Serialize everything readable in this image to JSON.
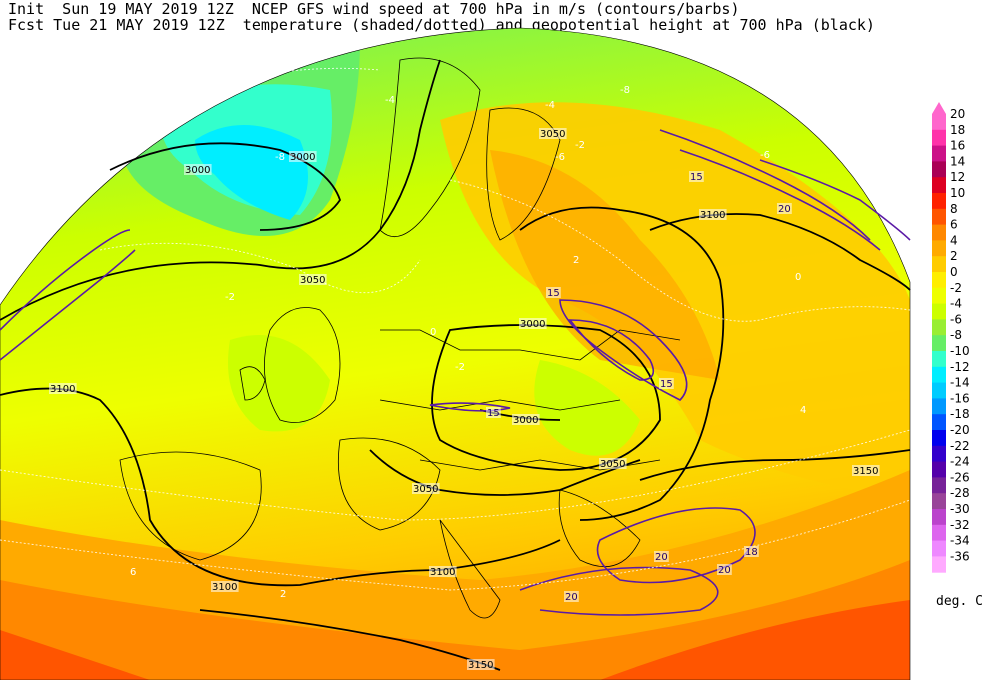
{
  "header": {
    "line1": "Init  Sun 19 MAY 2019 12Z  NCEP GFS wind speed at 700 hPa in m/s (contours/barbs)",
    "line2": "Fcst Tue 21 MAY 2019 12Z  temperature (shaded/dotted) and geopotential height at 700 hPa (black)"
  },
  "colorbar": {
    "unit": "deg. C",
    "levels": [
      {
        "label": "20",
        "color": "#ff66cc"
      },
      {
        "label": "18",
        "color": "#ff33aa"
      },
      {
        "label": "16",
        "color": "#cc1188"
      },
      {
        "label": "14",
        "color": "#aa0055"
      },
      {
        "label": "12",
        "color": "#dd0022"
      },
      {
        "label": "10",
        "color": "#ff2200"
      },
      {
        "label": "8",
        "color": "#ff5500"
      },
      {
        "label": "6",
        "color": "#ff8800"
      },
      {
        "label": "4",
        "color": "#ffaa00"
      },
      {
        "label": "2",
        "color": "#ffcc00"
      },
      {
        "label": "0",
        "color": "#ffee00"
      },
      {
        "label": "-2",
        "color": "#eeff00"
      },
      {
        "label": "-4",
        "color": "#ccff00"
      },
      {
        "label": "-6",
        "color": "#99ee33"
      },
      {
        "label": "-8",
        "color": "#66ee66"
      },
      {
        "label": "-10",
        "color": "#33ffcc"
      },
      {
        "label": "-12",
        "color": "#00eeff"
      },
      {
        "label": "-14",
        "color": "#00ccff"
      },
      {
        "label": "-16",
        "color": "#0099ff"
      },
      {
        "label": "-18",
        "color": "#0055ff"
      },
      {
        "label": "-20",
        "color": "#0000ee"
      },
      {
        "label": "-22",
        "color": "#3300cc"
      },
      {
        "label": "-24",
        "color": "#5500aa"
      },
      {
        "label": "-26",
        "color": "#772299"
      },
      {
        "label": "-28",
        "color": "#994499"
      },
      {
        "label": "-30",
        "color": "#bb44cc"
      },
      {
        "label": "-32",
        "color": "#dd66ee"
      },
      {
        "label": "-34",
        "color": "#ee88ff"
      },
      {
        "label": "-36",
        "color": "#ffaaff"
      }
    ]
  },
  "contour_labels": {
    "height": [
      "3000",
      "3000",
      "3000",
      "3000",
      "3050",
      "3050",
      "3050",
      "3050",
      "3100",
      "3100",
      "3100",
      "3100",
      "3150",
      "3150"
    ],
    "wind": [
      "15",
      "15",
      "15",
      "15",
      "20",
      "20",
      "20",
      "20",
      "18"
    ],
    "temperature": [
      "-8",
      "-6",
      "-4",
      "-4",
      "-2",
      "-2",
      "-2",
      "0",
      "0",
      "2",
      "2",
      "4",
      "6",
      "-6",
      "-8"
    ]
  }
}
